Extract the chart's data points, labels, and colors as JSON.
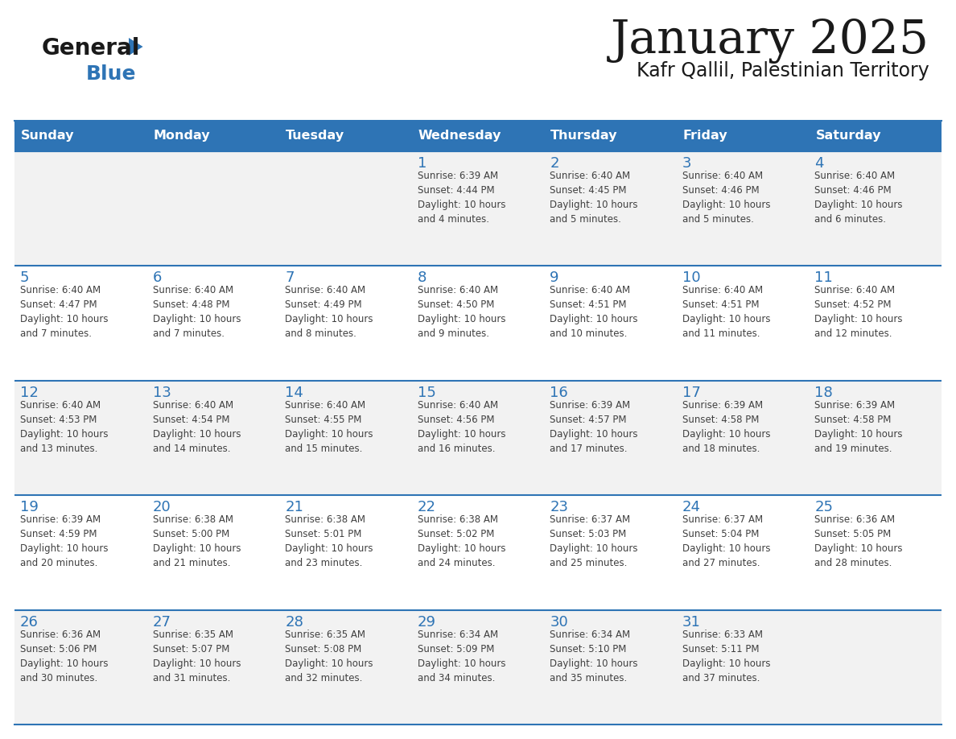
{
  "title": "January 2025",
  "subtitle": "Kafr Qallil, Palestinian Territory",
  "header_bg": "#2e74b5",
  "header_text_color": "#ffffff",
  "day_names": [
    "Sunday",
    "Monday",
    "Tuesday",
    "Wednesday",
    "Thursday",
    "Friday",
    "Saturday"
  ],
  "row_bg_light": "#f2f2f2",
  "row_bg_white": "#ffffff",
  "cell_text_color": "#404040",
  "day_num_color": "#2e74b5",
  "separator_color": "#2e74b5",
  "logo_general_color": "#1a1a1a",
  "logo_blue_color": "#2e74b5",
  "title_color": "#1a1a1a",
  "subtitle_color": "#1a1a1a",
  "calendar": [
    [
      {
        "day": null,
        "info": null
      },
      {
        "day": null,
        "info": null
      },
      {
        "day": null,
        "info": null
      },
      {
        "day": 1,
        "info": "Sunrise: 6:39 AM\nSunset: 4:44 PM\nDaylight: 10 hours\nand 4 minutes."
      },
      {
        "day": 2,
        "info": "Sunrise: 6:40 AM\nSunset: 4:45 PM\nDaylight: 10 hours\nand 5 minutes."
      },
      {
        "day": 3,
        "info": "Sunrise: 6:40 AM\nSunset: 4:46 PM\nDaylight: 10 hours\nand 5 minutes."
      },
      {
        "day": 4,
        "info": "Sunrise: 6:40 AM\nSunset: 4:46 PM\nDaylight: 10 hours\nand 6 minutes."
      }
    ],
    [
      {
        "day": 5,
        "info": "Sunrise: 6:40 AM\nSunset: 4:47 PM\nDaylight: 10 hours\nand 7 minutes."
      },
      {
        "day": 6,
        "info": "Sunrise: 6:40 AM\nSunset: 4:48 PM\nDaylight: 10 hours\nand 7 minutes."
      },
      {
        "day": 7,
        "info": "Sunrise: 6:40 AM\nSunset: 4:49 PM\nDaylight: 10 hours\nand 8 minutes."
      },
      {
        "day": 8,
        "info": "Sunrise: 6:40 AM\nSunset: 4:50 PM\nDaylight: 10 hours\nand 9 minutes."
      },
      {
        "day": 9,
        "info": "Sunrise: 6:40 AM\nSunset: 4:51 PM\nDaylight: 10 hours\nand 10 minutes."
      },
      {
        "day": 10,
        "info": "Sunrise: 6:40 AM\nSunset: 4:51 PM\nDaylight: 10 hours\nand 11 minutes."
      },
      {
        "day": 11,
        "info": "Sunrise: 6:40 AM\nSunset: 4:52 PM\nDaylight: 10 hours\nand 12 minutes."
      }
    ],
    [
      {
        "day": 12,
        "info": "Sunrise: 6:40 AM\nSunset: 4:53 PM\nDaylight: 10 hours\nand 13 minutes."
      },
      {
        "day": 13,
        "info": "Sunrise: 6:40 AM\nSunset: 4:54 PM\nDaylight: 10 hours\nand 14 minutes."
      },
      {
        "day": 14,
        "info": "Sunrise: 6:40 AM\nSunset: 4:55 PM\nDaylight: 10 hours\nand 15 minutes."
      },
      {
        "day": 15,
        "info": "Sunrise: 6:40 AM\nSunset: 4:56 PM\nDaylight: 10 hours\nand 16 minutes."
      },
      {
        "day": 16,
        "info": "Sunrise: 6:39 AM\nSunset: 4:57 PM\nDaylight: 10 hours\nand 17 minutes."
      },
      {
        "day": 17,
        "info": "Sunrise: 6:39 AM\nSunset: 4:58 PM\nDaylight: 10 hours\nand 18 minutes."
      },
      {
        "day": 18,
        "info": "Sunrise: 6:39 AM\nSunset: 4:58 PM\nDaylight: 10 hours\nand 19 minutes."
      }
    ],
    [
      {
        "day": 19,
        "info": "Sunrise: 6:39 AM\nSunset: 4:59 PM\nDaylight: 10 hours\nand 20 minutes."
      },
      {
        "day": 20,
        "info": "Sunrise: 6:38 AM\nSunset: 5:00 PM\nDaylight: 10 hours\nand 21 minutes."
      },
      {
        "day": 21,
        "info": "Sunrise: 6:38 AM\nSunset: 5:01 PM\nDaylight: 10 hours\nand 23 minutes."
      },
      {
        "day": 22,
        "info": "Sunrise: 6:38 AM\nSunset: 5:02 PM\nDaylight: 10 hours\nand 24 minutes."
      },
      {
        "day": 23,
        "info": "Sunrise: 6:37 AM\nSunset: 5:03 PM\nDaylight: 10 hours\nand 25 minutes."
      },
      {
        "day": 24,
        "info": "Sunrise: 6:37 AM\nSunset: 5:04 PM\nDaylight: 10 hours\nand 27 minutes."
      },
      {
        "day": 25,
        "info": "Sunrise: 6:36 AM\nSunset: 5:05 PM\nDaylight: 10 hours\nand 28 minutes."
      }
    ],
    [
      {
        "day": 26,
        "info": "Sunrise: 6:36 AM\nSunset: 5:06 PM\nDaylight: 10 hours\nand 30 minutes."
      },
      {
        "day": 27,
        "info": "Sunrise: 6:35 AM\nSunset: 5:07 PM\nDaylight: 10 hours\nand 31 minutes."
      },
      {
        "day": 28,
        "info": "Sunrise: 6:35 AM\nSunset: 5:08 PM\nDaylight: 10 hours\nand 32 minutes."
      },
      {
        "day": 29,
        "info": "Sunrise: 6:34 AM\nSunset: 5:09 PM\nDaylight: 10 hours\nand 34 minutes."
      },
      {
        "day": 30,
        "info": "Sunrise: 6:34 AM\nSunset: 5:10 PM\nDaylight: 10 hours\nand 35 minutes."
      },
      {
        "day": 31,
        "info": "Sunrise: 6:33 AM\nSunset: 5:11 PM\nDaylight: 10 hours\nand 37 minutes."
      },
      {
        "day": null,
        "info": null
      }
    ]
  ]
}
